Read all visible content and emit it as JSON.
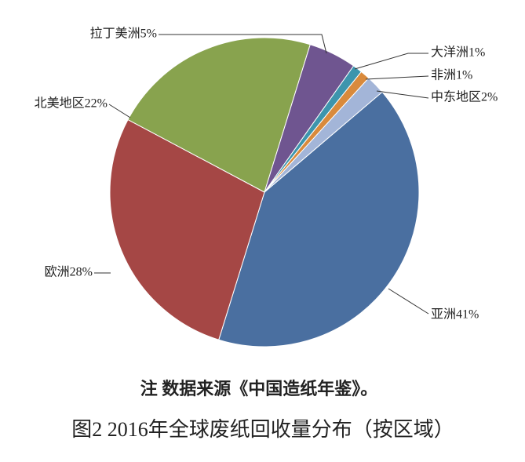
{
  "chart_data": {
    "type": "pie",
    "title": "图2 2016年全球废纸回收量分布（按区域）",
    "note": "注 数据来源《中国造纸年鉴》。",
    "categories": [
      "亚洲41%",
      "欧洲28%",
      "北美地区22%",
      "拉丁美洲5%",
      "大洋洲1%",
      "非洲1%",
      "中东地区2%"
    ],
    "values": [
      41,
      28,
      22,
      5,
      1,
      1,
      2
    ],
    "colors": [
      "#4a6fa0",
      "#a54745",
      "#88a34e",
      "#6f5590",
      "#3d95ad",
      "#d98a3c",
      "#a3b5d8"
    ]
  }
}
